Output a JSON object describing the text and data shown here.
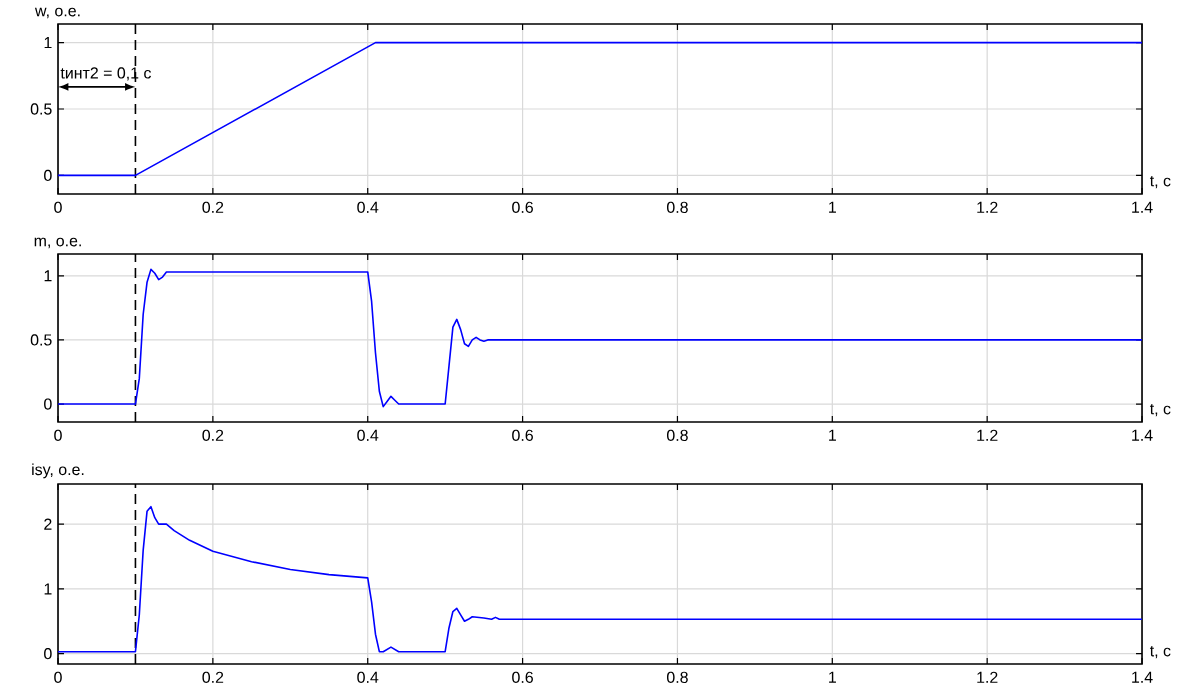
{
  "chart_data": [
    {
      "type": "line",
      "ylabel": "w, о.е.",
      "xlabel": "t, с",
      "grid": true,
      "x": [
        0,
        0.1,
        0.41,
        1.4
      ],
      "series": [
        {
          "color": "#0000ff",
          "values": [
            0,
            0,
            1,
            1
          ]
        }
      ],
      "xlim": [
        0,
        1.4
      ],
      "ylim": [
        -0.14,
        1.14
      ],
      "xticks": [
        0,
        0.2,
        0.4,
        0.6,
        0.8,
        1,
        1.2,
        1.4
      ],
      "yticks": [
        0,
        0.5,
        1
      ],
      "ref_lines": [
        {
          "axis": "x",
          "value": 0.1,
          "color": "#000000",
          "line_style": "dashed"
        }
      ],
      "annotations": [
        "tинт2 = 0,1 с"
      ]
    },
    {
      "type": "line",
      "ylabel": "m, о.е.",
      "xlabel": "t, с",
      "grid": true,
      "x": [
        0,
        0.1,
        0.105,
        0.11,
        0.115,
        0.12,
        0.125,
        0.13,
        0.135,
        0.14,
        0.16,
        0.4,
        0.405,
        0.41,
        0.415,
        0.42,
        0.425,
        0.43,
        0.435,
        0.44,
        0.5,
        0.505,
        0.51,
        0.515,
        0.52,
        0.525,
        0.53,
        0.535,
        0.54,
        0.545,
        0.55,
        0.555,
        1.4
      ],
      "series": [
        {
          "color": "#0000ff",
          "values": [
            0,
            0,
            0.2,
            0.7,
            0.95,
            1.05,
            1.02,
            0.97,
            0.99,
            1.03,
            1.03,
            1.03,
            0.8,
            0.4,
            0.1,
            -0.02,
            0.02,
            0.06,
            0.03,
            0,
            0,
            0.3,
            0.6,
            0.66,
            0.58,
            0.47,
            0.45,
            0.5,
            0.52,
            0.5,
            0.49,
            0.5,
            0.5
          ]
        }
      ],
      "xlim": [
        0,
        1.4
      ],
      "ylim": [
        -0.14,
        1.17
      ],
      "xticks": [
        0,
        0.2,
        0.4,
        0.6,
        0.8,
        1,
        1.2,
        1.4
      ],
      "yticks": [
        0,
        0.5,
        1
      ],
      "ref_lines": [
        {
          "axis": "x",
          "value": 0.1,
          "color": "#000000",
          "line_style": "dashed"
        }
      ]
    },
    {
      "type": "line",
      "ylabel": "isy, о.е.",
      "xlabel": "t, с",
      "grid": true,
      "x": [
        0,
        0.1,
        0.105,
        0.11,
        0.115,
        0.12,
        0.125,
        0.13,
        0.14,
        0.15,
        0.17,
        0.2,
        0.25,
        0.3,
        0.35,
        0.4,
        0.405,
        0.41,
        0.415,
        0.42,
        0.43,
        0.44,
        0.5,
        0.505,
        0.51,
        0.515,
        0.52,
        0.525,
        0.53,
        0.535,
        0.55,
        0.56,
        0.565,
        0.57,
        1.4
      ],
      "series": [
        {
          "color": "#0000ff",
          "values": [
            0.03,
            0.03,
            0.6,
            1.6,
            2.2,
            2.27,
            2.1,
            2.0,
            2.0,
            1.9,
            1.75,
            1.58,
            1.42,
            1.3,
            1.22,
            1.17,
            0.8,
            0.3,
            0.03,
            0.03,
            0.1,
            0.03,
            0.03,
            0.4,
            0.65,
            0.7,
            0.6,
            0.5,
            0.53,
            0.57,
            0.55,
            0.53,
            0.56,
            0.53,
            0.53
          ]
        }
      ],
      "xlim": [
        0,
        1.4
      ],
      "ylim": [
        -0.16,
        2.62
      ],
      "xticks": [
        0,
        0.2,
        0.4,
        0.6,
        0.8,
        1,
        1.2,
        1.4
      ],
      "yticks": [
        0,
        1,
        2
      ],
      "ref_lines": [
        {
          "axis": "x",
          "value": 0.1,
          "color": "#000000",
          "line_style": "dashed"
        }
      ]
    }
  ]
}
